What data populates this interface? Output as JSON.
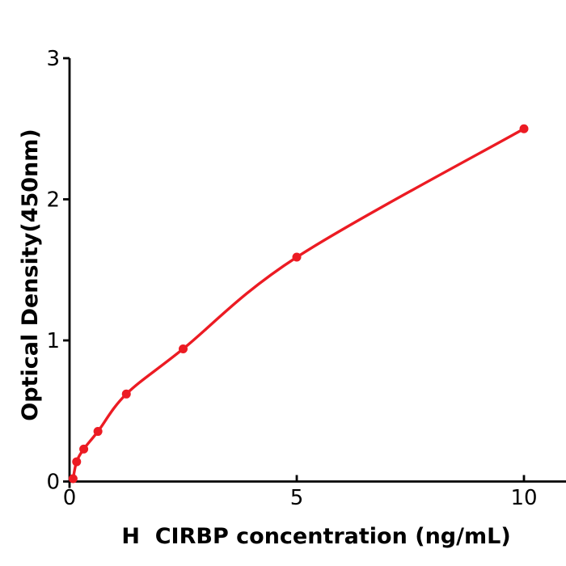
{
  "figure": {
    "background": "#ffffff"
  },
  "chart_data": {
    "type": "line",
    "title": "",
    "xlabel": "H  CIRBP concentration (ng/mL)",
    "ylabel": "Optical Density(450nm)",
    "x": [
      0.078,
      0.156,
      0.313,
      0.625,
      1.25,
      2.5,
      5,
      10
    ],
    "y": [
      0.02,
      0.14,
      0.23,
      0.355,
      0.62,
      0.94,
      1.59,
      2.5
    ],
    "xlim": [
      0,
      10.55
    ],
    "ylim": [
      0,
      3
    ],
    "xticks": [
      {
        "value": 0,
        "label": "0"
      },
      {
        "value": 5,
        "label": "5"
      },
      {
        "value": 10,
        "label": "10"
      }
    ],
    "yticks": [
      {
        "value": 0,
        "label": "0"
      },
      {
        "value": 1,
        "label": "1"
      },
      {
        "value": 2,
        "label": "2"
      },
      {
        "value": 3,
        "label": "3"
      }
    ],
    "grid": false,
    "legend": "none",
    "marker": "circle",
    "colors": {
      "curve": "#ec1b23",
      "axis": "#000000",
      "text": "#000000"
    }
  }
}
